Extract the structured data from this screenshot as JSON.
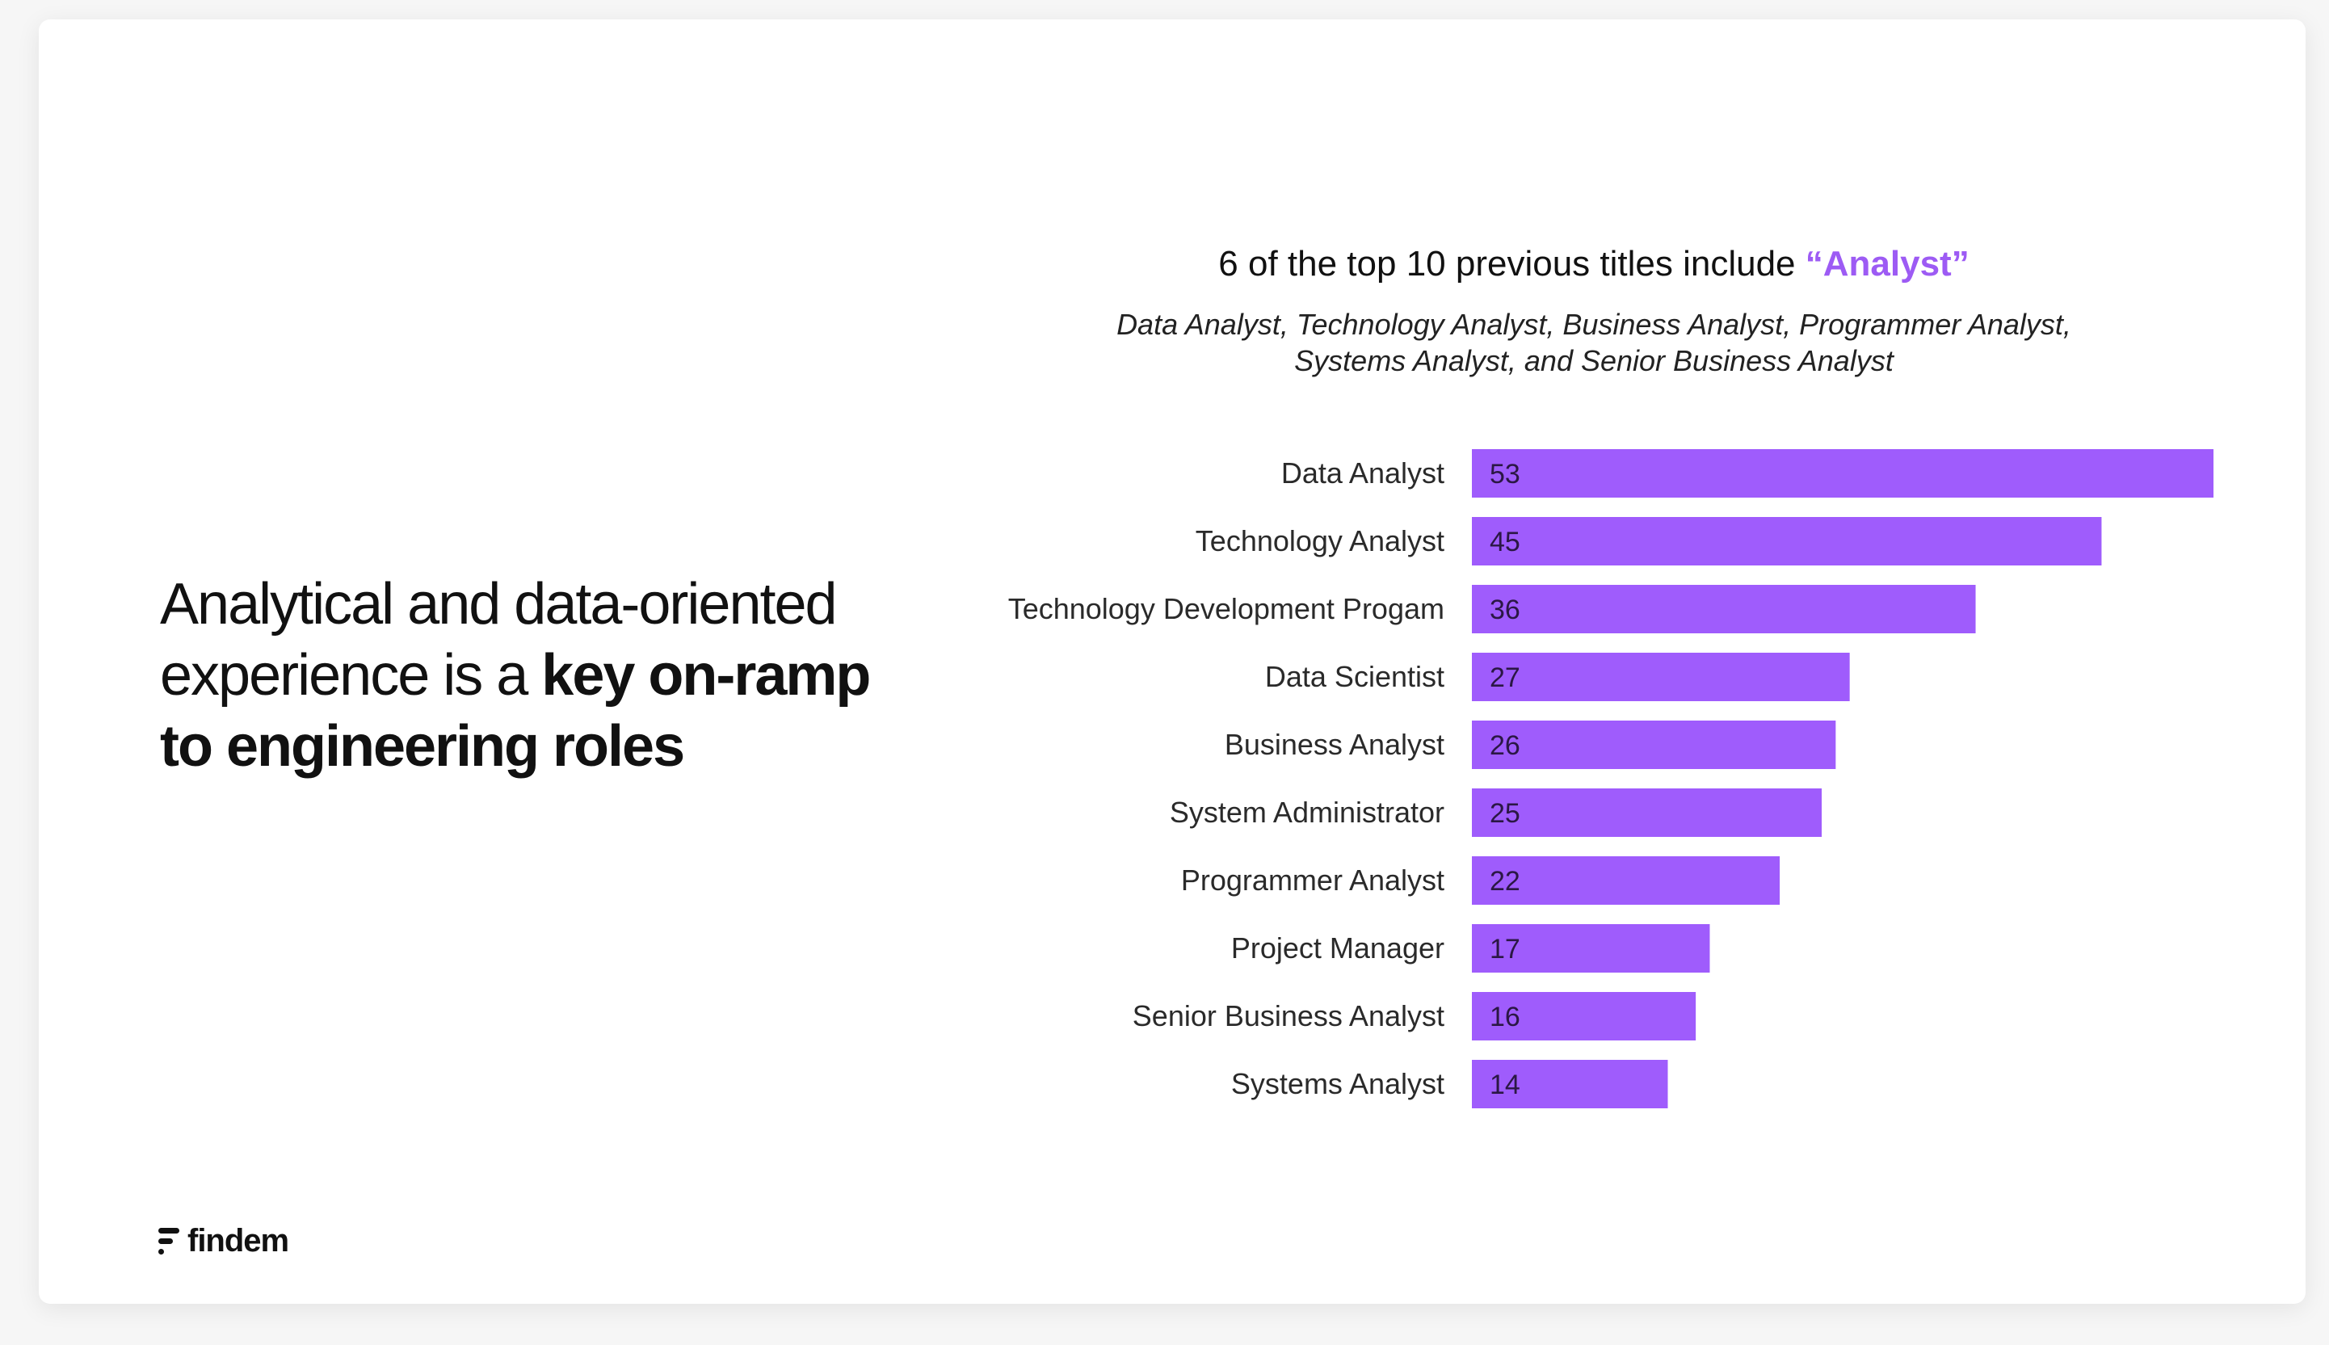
{
  "headline": {
    "line1": "Analytical and data-oriented",
    "line2_regular": "experience is a ",
    "line2_bold": "key on-ramp",
    "line3_bold": "to engineering roles"
  },
  "chart_data": {
    "type": "bar",
    "orientation": "horizontal",
    "title_prefix": "6 of the top 10 previous titles include ",
    "title_highlight": "“Analyst”",
    "subtitle_line1": "Data Analyst, Technology Analyst, Business Analyst, Programmer Analyst,",
    "subtitle_line2": "Systems Analyst, and Senior Business Analyst",
    "categories": [
      "Data Analyst",
      "Technology Analyst",
      "Technology Development Progam",
      "Data Scientist",
      "Business Analyst",
      "System Administrator",
      "Programmer Analyst",
      "Project Manager",
      "Senior Business Analyst",
      "Systems Analyst"
    ],
    "values": [
      53,
      45,
      36,
      27,
      26,
      25,
      22,
      17,
      16,
      14
    ],
    "xlim": [
      0,
      53
    ],
    "bar_color": "#9f5cfc",
    "accent_color": "#9d5bf4",
    "grid": false,
    "legend": "none"
  },
  "logo": {
    "text": "findem",
    "icon": "findem-logo-icon"
  }
}
